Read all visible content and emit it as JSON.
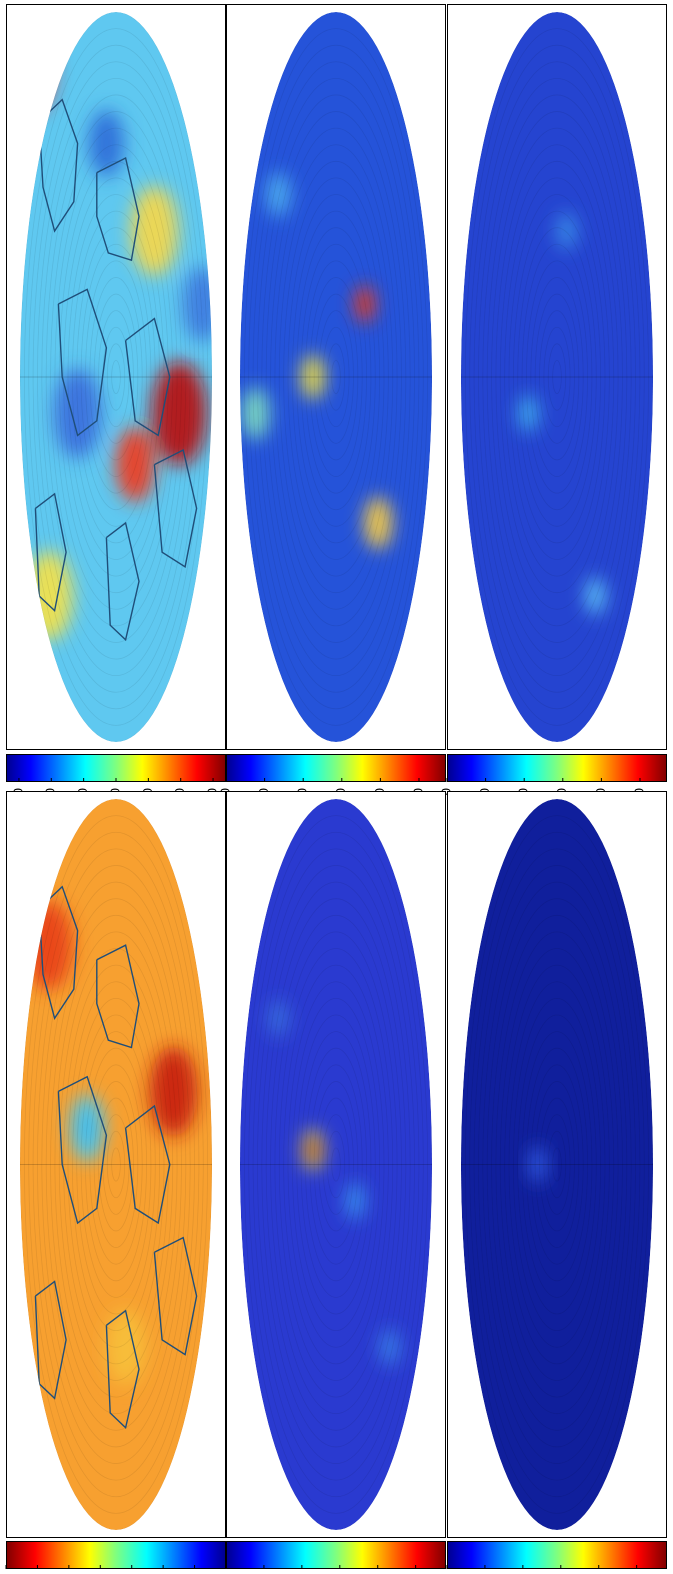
{
  "figure": {
    "description_free": true,
    "panels": [
      {
        "id": "top-left",
        "row": "top",
        "column": "left",
        "field": "signed-anomaly",
        "background": "#5fc8f0",
        "show_coastlines": true,
        "coastline_color": "#1f4e79",
        "colormap": "jet",
        "colorbar_reversed": false,
        "colorbar_ticks": [
          "-600",
          "-400",
          "-200",
          "0",
          "200",
          "400",
          "600"
        ],
        "colorbar_min": -680,
        "colorbar_max": 680,
        "blobs": [
          {
            "u": 0.05,
            "v": 0.08,
            "r": 0.12,
            "color": "#e8262a"
          },
          {
            "u": 0.6,
            "v": 0.62,
            "r": 0.1,
            "color": "#f03a1c"
          },
          {
            "u": 0.83,
            "v": 0.55,
            "r": 0.14,
            "color": "#b81010"
          },
          {
            "u": 0.45,
            "v": 0.18,
            "r": 0.09,
            "color": "#2c6bd8"
          },
          {
            "u": 0.3,
            "v": 0.55,
            "r": 0.12,
            "color": "#3a6fdc"
          },
          {
            "u": 0.15,
            "v": 0.8,
            "r": 0.12,
            "color": "#f4e24a"
          },
          {
            "u": 0.7,
            "v": 0.3,
            "r": 0.12,
            "color": "#f6d84a"
          },
          {
            "u": 0.95,
            "v": 0.4,
            "r": 0.1,
            "color": "#3d7be0"
          }
        ]
      },
      {
        "id": "top-middle",
        "row": "top",
        "column": "middle",
        "field": "magnitude",
        "background": "#2553d9",
        "show_coastlines": false,
        "colormap": "jet",
        "colorbar_reversed": false,
        "colorbar_ticks": [
          "0",
          "50",
          "100",
          "150",
          "200",
          "250"
        ],
        "colorbar_min": 0,
        "colorbar_max": 285,
        "blobs": [
          {
            "u": 0.38,
            "v": 0.5,
            "r": 0.06,
            "color": "#f0e040"
          },
          {
            "u": 0.08,
            "v": 0.55,
            "r": 0.07,
            "color": "#7fe0c0"
          },
          {
            "u": 0.72,
            "v": 0.7,
            "r": 0.07,
            "color": "#ffd040"
          },
          {
            "u": 0.65,
            "v": 0.4,
            "r": 0.05,
            "color": "#e93a1a"
          },
          {
            "u": 0.2,
            "v": 0.25,
            "r": 0.06,
            "color": "#4fb0f0"
          }
        ]
      },
      {
        "id": "top-right",
        "row": "top",
        "column": "right",
        "field": "magnitude",
        "background": "#2544d0",
        "show_coastlines": false,
        "colormap": "jet",
        "colorbar_reversed": false,
        "colorbar_ticks": [
          "0",
          "50",
          "100",
          "150",
          "200",
          "250"
        ],
        "colorbar_min": 0,
        "colorbar_max": 285,
        "blobs": [
          {
            "u": 0.35,
            "v": 0.55,
            "r": 0.05,
            "color": "#3fb0f0"
          },
          {
            "u": 0.7,
            "v": 0.8,
            "r": 0.05,
            "color": "#5fc8f8"
          },
          {
            "u": 0.55,
            "v": 0.3,
            "r": 0.05,
            "color": "#3a8ee8"
          }
        ]
      },
      {
        "id": "bottom-left",
        "row": "bottom",
        "column": "left",
        "field": "reversed-scale",
        "background": "#f7a030",
        "show_coastlines": true,
        "coastline_color": "#1f4e79",
        "colormap": "jet",
        "colorbar_reversed": true,
        "colorbar_ticks": [
          "-0.04",
          "-0.02",
          "0",
          "0.02",
          "0.04",
          "0.06",
          "0.08",
          "0.10"
        ],
        "colorbar_min": -0.04,
        "colorbar_max": 0.1,
        "blobs": [
          {
            "u": 0.35,
            "v": 0.45,
            "r": 0.05,
            "color": "#0a2cc8"
          },
          {
            "u": 0.35,
            "v": 0.45,
            "r": 0.09,
            "color": "#49c8f0"
          },
          {
            "u": 0.8,
            "v": 0.4,
            "r": 0.12,
            "color": "#c81e12"
          },
          {
            "u": 0.15,
            "v": 0.2,
            "r": 0.12,
            "color": "#e8401a"
          },
          {
            "u": 0.55,
            "v": 0.75,
            "r": 0.1,
            "color": "#f7c03a"
          }
        ]
      },
      {
        "id": "bottom-middle",
        "row": "bottom",
        "column": "middle",
        "field": "magnitude",
        "background": "#2a3ad0",
        "show_coastlines": false,
        "colormap": "jet",
        "colorbar_reversed": false,
        "colorbar_ticks": [
          "0",
          "0.01",
          "0.02",
          "0.03",
          "0.04",
          "0.05"
        ],
        "colorbar_min": 0,
        "colorbar_max": 0.058,
        "blobs": [
          {
            "u": 0.38,
            "v": 0.48,
            "r": 0.055,
            "color": "#f0e040"
          },
          {
            "u": 0.38,
            "v": 0.48,
            "r": 0.035,
            "color": "#d01818"
          },
          {
            "u": 0.38,
            "v": 0.48,
            "r": 0.02,
            "color": "#a00000"
          },
          {
            "u": 0.6,
            "v": 0.55,
            "r": 0.05,
            "color": "#3a90f0"
          },
          {
            "u": 0.78,
            "v": 0.75,
            "r": 0.05,
            "color": "#3a80e8"
          },
          {
            "u": 0.2,
            "v": 0.3,
            "r": 0.05,
            "color": "#3a70e0"
          }
        ]
      },
      {
        "id": "bottom-right",
        "row": "bottom",
        "column": "right",
        "field": "magnitude",
        "background": "#101f9c",
        "show_coastlines": false,
        "colormap": "jet",
        "colorbar_reversed": false,
        "colorbar_ticks": [
          "0",
          "0.01",
          "0.02",
          "0.03",
          "0.04",
          "0.05"
        ],
        "colorbar_min": 0,
        "colorbar_max": 0.058,
        "blobs": [
          {
            "u": 0.4,
            "v": 0.5,
            "r": 0.05,
            "color": "#2f58e0"
          }
        ]
      }
    ]
  }
}
